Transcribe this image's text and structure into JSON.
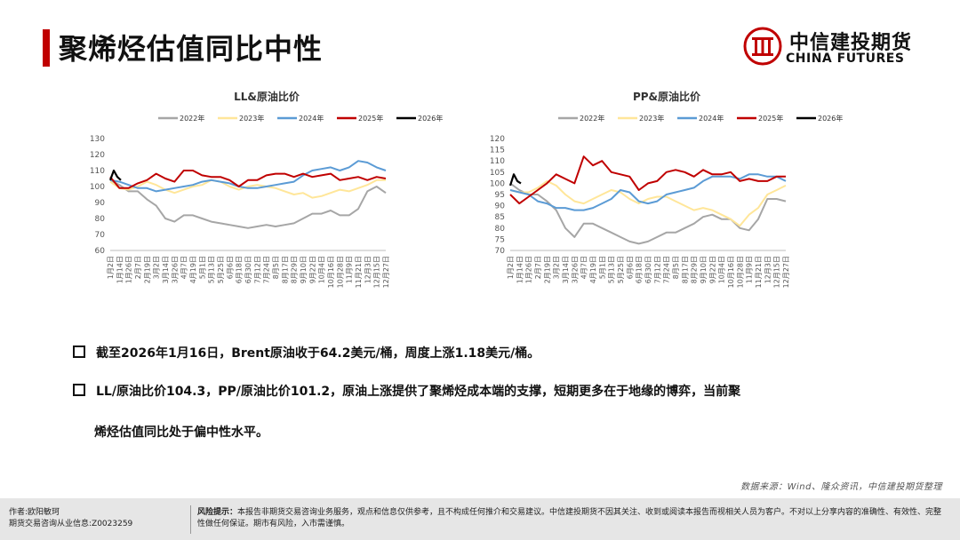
{
  "header": {
    "title": "聚烯烃估值同比中性",
    "logo_cn": "中信建投期货",
    "logo_en": "CHINA FUTURES",
    "accent": "#c00000"
  },
  "charts": [
    {
      "title": "LL&原油比价",
      "yticks": [
        "130",
        "120",
        "110",
        "100",
        "90",
        "80",
        "70",
        "60"
      ],
      "ylim": [
        60,
        130
      ]
    },
    {
      "title": "PP&原油比价",
      "yticks": [
        "120",
        "115",
        "110",
        "105",
        "100",
        "95",
        "90",
        "85",
        "80",
        "75",
        "70"
      ],
      "ylim": [
        70,
        120
      ]
    }
  ],
  "legend": [
    "2022年",
    "2023年",
    "2024年",
    "2025年",
    "2026年"
  ],
  "series_colors": [
    "#a6a6a6",
    "#ffe699",
    "#5b9bd5",
    "#c00000",
    "#000000"
  ],
  "xticks": [
    "1月2日",
    "1月14日",
    "1月26日",
    "2月7日",
    "2月19日",
    "3月2日",
    "3月14日",
    "3月26日",
    "4月7日",
    "4月19日",
    "5月1日",
    "5月13日",
    "5月25日",
    "6月6日",
    "6月18日",
    "6月30日",
    "7月12日",
    "7月24日",
    "8月5日",
    "8月17日",
    "8月29日",
    "9月10日",
    "9月22日",
    "10月4日",
    "10月16日",
    "10月28日",
    "11月9日",
    "11月21日",
    "12月3日",
    "12月15日",
    "12月27日"
  ],
  "chart_data": [
    {
      "type": "line",
      "title": "LL&原油比价",
      "ylim": [
        60,
        130
      ],
      "series": [
        {
          "name": "2022年",
          "values": [
            104,
            101,
            97,
            97,
            92,
            88,
            80,
            78,
            82,
            82,
            80,
            78,
            77,
            76,
            75,
            74,
            75,
            76,
            75,
            76,
            77,
            80,
            83,
            83,
            85,
            82,
            82,
            86,
            97,
            100,
            96
          ]
        },
        {
          "name": "2023年",
          "values": [
            103,
            99,
            98,
            100,
            103,
            101,
            98,
            96,
            98,
            100,
            101,
            104,
            103,
            100,
            98,
            100,
            101,
            100,
            99,
            97,
            95,
            96,
            93,
            94,
            96,
            98,
            97,
            99,
            101,
            104,
            104
          ]
        },
        {
          "name": "2024年",
          "values": [
            104,
            103,
            101,
            99,
            99,
            97,
            98,
            99,
            100,
            101,
            103,
            104,
            103,
            102,
            100,
            99,
            99,
            100,
            101,
            102,
            103,
            107,
            110,
            111,
            112,
            110,
            112,
            116,
            115,
            112,
            110
          ]
        },
        {
          "name": "2025年",
          "values": [
            106,
            99,
            99,
            102,
            104,
            108,
            105,
            103,
            110,
            110,
            107,
            106,
            106,
            104,
            100,
            104,
            104,
            107,
            108,
            108,
            106,
            108,
            106,
            107,
            108,
            104,
            105,
            106,
            104,
            106,
            105
          ]
        },
        {
          "name": "2026年",
          "values": [
            104,
            110,
            106,
            104
          ]
        }
      ]
    },
    {
      "type": "line",
      "title": "PP&原油比价",
      "ylim": [
        70,
        120
      ],
      "series": [
        {
          "name": "2022年",
          "values": [
            100,
            97,
            95,
            95,
            92,
            88,
            80,
            76,
            82,
            82,
            80,
            78,
            76,
            74,
            73,
            74,
            76,
            78,
            78,
            80,
            82,
            85,
            86,
            84,
            84,
            80,
            79,
            84,
            93,
            93,
            92
          ]
        },
        {
          "name": "2023年",
          "values": [
            97,
            96,
            96,
            98,
            101,
            99,
            95,
            92,
            91,
            93,
            95,
            97,
            96,
            93,
            91,
            93,
            94,
            94,
            92,
            90,
            88,
            89,
            88,
            86,
            84,
            81,
            86,
            89,
            95,
            97,
            99
          ]
        },
        {
          "name": "2024年",
          "values": [
            97,
            96,
            95,
            92,
            91,
            89,
            89,
            88,
            88,
            89,
            91,
            93,
            97,
            96,
            92,
            91,
            92,
            95,
            96,
            97,
            98,
            101,
            103,
            103,
            103,
            102,
            104,
            104,
            103,
            103,
            101
          ]
        },
        {
          "name": "2025年",
          "values": [
            95,
            91,
            94,
            97,
            100,
            104,
            102,
            100,
            112,
            108,
            110,
            105,
            104,
            103,
            97,
            100,
            101,
            105,
            106,
            105,
            103,
            106,
            104,
            104,
            105,
            101,
            102,
            101,
            101,
            103,
            103
          ]
        },
        {
          "name": "2026年",
          "values": [
            99,
            104,
            101,
            100
          ]
        }
      ]
    }
  ],
  "bullets": [
    "截至2026年1月16日，Brent原油收于64.2美元/桶，周度上涨1.18美元/桶。",
    "LL/原油比价104.3，PP/原油比价101.2，原油上涨提供了聚烯烃成本端的支撑，短期更多在于地缘的博弈，当前聚"
  ],
  "bullet_continuation": "烯烃估值同比处于偏中性水平。",
  "source": "数据来源：Wind、隆众资讯，中信建投期货整理",
  "footer": {
    "author": "作者:欧阳敏珂",
    "license": "期货交易咨询从业信息:Z0023259",
    "risk_label": "风险提示：",
    "risk_text": "本报告非期货交易咨询业务服务，观点和信息仅供参考，且不构成任何推介和交易建议。中信建投期货不因其关注、收到或阅读本报告而视相关人员为客户。不对以上分享内容的准确性、有效性、完整性做任何保证。期市有风险，入市需谨慎。"
  }
}
